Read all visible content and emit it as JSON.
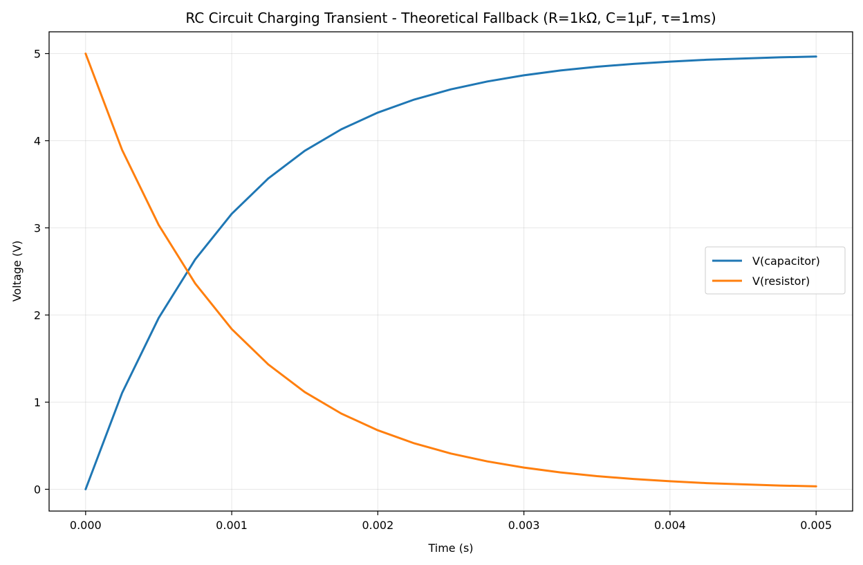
{
  "chart_data": {
    "type": "line",
    "title": "RC Circuit Charging Transient - Theoretical Fallback (R=1kΩ, C=1μF, τ=1ms)",
    "xlabel": "Time (s)",
    "ylabel": "Voltage (V)",
    "xlim": [
      -0.00025,
      0.00525
    ],
    "ylim": [
      -0.25,
      5.25
    ],
    "xticks": [
      0.0,
      0.001,
      0.002,
      0.003,
      0.004,
      0.005
    ],
    "xtick_labels": [
      "0.000",
      "0.001",
      "0.002",
      "0.003",
      "0.004",
      "0.005"
    ],
    "yticks": [
      0,
      1,
      2,
      3,
      4,
      5
    ],
    "ytick_labels": [
      "0",
      "1",
      "2",
      "3",
      "4",
      "5"
    ],
    "grid": true,
    "legend_position": "center-right",
    "x": [
      0.0,
      0.00025,
      0.0005,
      0.00075,
      0.001,
      0.00125,
      0.0015,
      0.00175,
      0.002,
      0.00225,
      0.0025,
      0.00275,
      0.003,
      0.00325,
      0.0035,
      0.00375,
      0.004,
      0.00425,
      0.0045,
      0.00475,
      0.005
    ],
    "series": [
      {
        "name": "V(capacitor)",
        "color": "#1f77b4",
        "values": [
          0.0,
          1.106,
          1.967,
          2.638,
          3.161,
          3.567,
          3.884,
          4.131,
          4.323,
          4.473,
          4.59,
          4.68,
          4.751,
          4.806,
          4.849,
          4.882,
          4.908,
          4.929,
          4.944,
          4.957,
          4.966
        ]
      },
      {
        "name": "V(resistor)",
        "color": "#ff7f0e",
        "values": [
          5.0,
          3.894,
          3.033,
          2.362,
          1.839,
          1.433,
          1.116,
          0.869,
          0.677,
          0.527,
          0.41,
          0.32,
          0.249,
          0.194,
          0.151,
          0.118,
          0.092,
          0.071,
          0.056,
          0.043,
          0.034
        ]
      }
    ]
  }
}
